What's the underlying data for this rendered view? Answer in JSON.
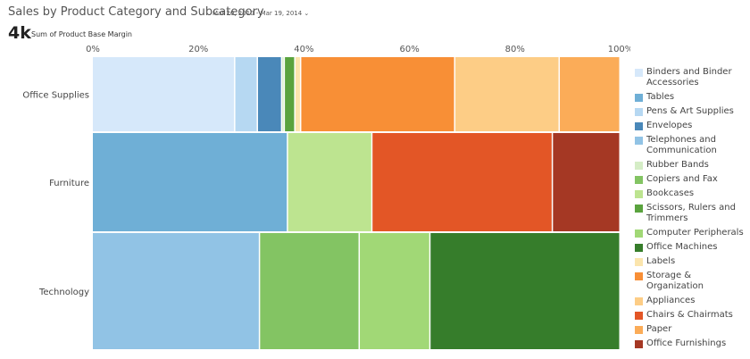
{
  "header": {
    "title": "Sales by Product Category and Subcategory",
    "daterange": "Mar 20, 2010 - Mar 19, 2014",
    "kpi_value": "4k",
    "kpi_label": "Sum of Product Base Margin"
  },
  "chart_data": {
    "type": "bar",
    "stacked": "100%",
    "orientation": "horizontal",
    "categories": [
      "Office Supplies",
      "Furniture",
      "Technology"
    ],
    "x_ticks": [
      "0%",
      "20%",
      "40%",
      "60%",
      "80%",
      "100%"
    ],
    "xlim": [
      0,
      100
    ],
    "legend_position": "right",
    "series": [
      {
        "name": "Binders and Binder Accessories",
        "color": "#d6e8fa",
        "values": [
          27,
          0,
          0
        ]
      },
      {
        "name": "Tables",
        "color": "#6fafd6",
        "values": [
          0,
          37,
          0
        ]
      },
      {
        "name": "Pens & Art Supplies",
        "color": "#b6d8f2",
        "values": [
          4.3,
          0,
          0
        ]
      },
      {
        "name": "Envelopes",
        "color": "#4a88b9",
        "values": [
          4.6,
          0,
          0
        ]
      },
      {
        "name": "Telephones and Communication",
        "color": "#91c3e5",
        "values": [
          0,
          0,
          31.7
        ]
      },
      {
        "name": "Rubber Bands",
        "color": "#d5edc6",
        "values": [
          0.5,
          0,
          0
        ]
      },
      {
        "name": "Copiers and Fax",
        "color": "#83c463",
        "values": [
          0,
          0,
          18.9
        ]
      },
      {
        "name": "Bookcases",
        "color": "#bde490",
        "values": [
          0,
          16,
          0
        ]
      },
      {
        "name": "Scissors, Rulers and Trimmers",
        "color": "#5aa33e",
        "values": [
          2,
          0,
          0
        ]
      },
      {
        "name": "Computer Peripherals",
        "color": "#a1d876",
        "values": [
          0,
          0,
          13.4
        ]
      },
      {
        "name": "Office Machines",
        "color": "#367d2b",
        "values": [
          0,
          0,
          36
        ]
      },
      {
        "name": "Labels",
        "color": "#fbe5ad",
        "values": [
          1.1,
          0,
          0
        ]
      },
      {
        "name": "Storage & Organization",
        "color": "#f88f36",
        "values": [
          29.2,
          0,
          0
        ]
      },
      {
        "name": "Appliances",
        "color": "#fdcd86",
        "values": [
          19.8,
          0,
          0
        ]
      },
      {
        "name": "Chairs & Chairmats",
        "color": "#e35626",
        "values": [
          0,
          34.2,
          0
        ]
      },
      {
        "name": "Paper",
        "color": "#fbac58",
        "values": [
          11.5,
          0,
          0
        ]
      },
      {
        "name": "Office Furnishings",
        "color": "#a53824",
        "values": [
          0,
          12.8,
          0
        ]
      }
    ],
    "stack_order": [
      [
        "Binders and Binder Accessories",
        "Pens & Art Supplies",
        "Envelopes",
        "Rubber Bands",
        "Scissors, Rulers and Trimmers",
        "Labels",
        "Storage & Organization",
        "Appliances",
        "Paper"
      ],
      [
        "Tables",
        "Bookcases",
        "Chairs & Chairmats",
        "Office Furnishings"
      ],
      [
        "Telephones and Communication",
        "Copiers and Fax",
        "Computer Peripherals",
        "Office Machines"
      ]
    ]
  }
}
